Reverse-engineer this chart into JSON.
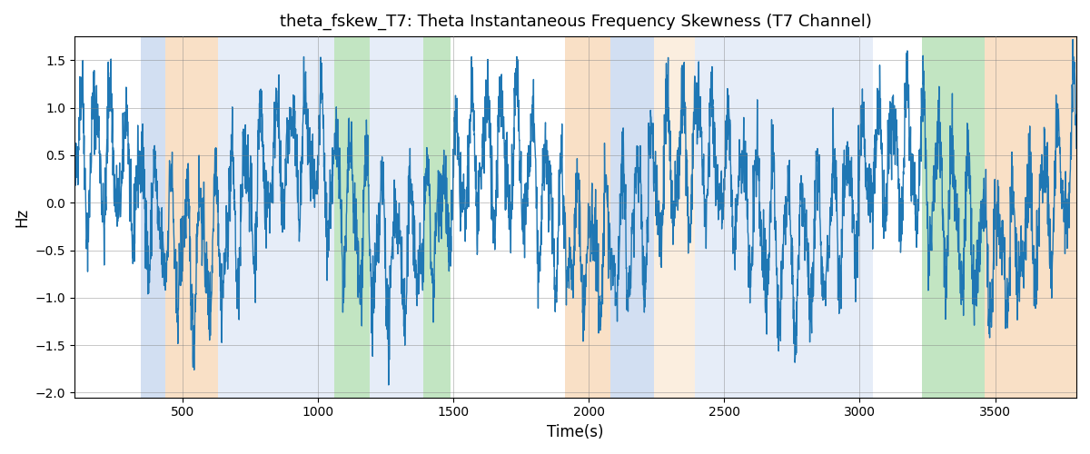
{
  "title": "theta_fskew_T7: Theta Instantaneous Frequency Skewness (T7 Channel)",
  "xlabel": "Time(s)",
  "ylabel": "Hz",
  "xlim": [
    100,
    3800
  ],
  "ylim": [
    -2.05,
    1.75
  ],
  "yticks": [
    -2.0,
    -1.5,
    -1.0,
    -0.5,
    0.0,
    0.5,
    1.0,
    1.5
  ],
  "xticks": [
    500,
    1000,
    1500,
    2000,
    2500,
    3000,
    3500
  ],
  "line_color": "#1f77b4",
  "line_width": 1.0,
  "bg_color": "white",
  "figsize": [
    12,
    5
  ],
  "dpi": 100,
  "colored_bands": [
    {
      "xmin": 345,
      "xmax": 435,
      "color": "#aec6e8",
      "alpha": 0.55
    },
    {
      "xmin": 435,
      "xmax": 630,
      "color": "#f5c898",
      "alpha": 0.55
    },
    {
      "xmin": 630,
      "xmax": 780,
      "color": "#aec6e8",
      "alpha": 0.3
    },
    {
      "xmin": 780,
      "xmax": 900,
      "color": "#aec6e8",
      "alpha": 0.3
    },
    {
      "xmin": 900,
      "xmax": 1060,
      "color": "#aec6e8",
      "alpha": 0.3
    },
    {
      "xmin": 1060,
      "xmax": 1190,
      "color": "#90d090",
      "alpha": 0.55
    },
    {
      "xmin": 1190,
      "xmax": 1390,
      "color": "#aec6e8",
      "alpha": 0.3
    },
    {
      "xmin": 1390,
      "xmax": 1490,
      "color": "#90d090",
      "alpha": 0.55
    },
    {
      "xmin": 1910,
      "xmax": 2080,
      "color": "#f5c898",
      "alpha": 0.55
    },
    {
      "xmin": 2080,
      "xmax": 2240,
      "color": "#aec6e8",
      "alpha": 0.55
    },
    {
      "xmin": 2240,
      "xmax": 2390,
      "color": "#f5c898",
      "alpha": 0.3
    },
    {
      "xmin": 2390,
      "xmax": 2540,
      "color": "#aec6e8",
      "alpha": 0.3
    },
    {
      "xmin": 2540,
      "xmax": 2680,
      "color": "#aec6e8",
      "alpha": 0.3
    },
    {
      "xmin": 2680,
      "xmax": 2860,
      "color": "#aec6e8",
      "alpha": 0.3
    },
    {
      "xmin": 2860,
      "xmax": 3050,
      "color": "#aec6e8",
      "alpha": 0.3
    },
    {
      "xmin": 3230,
      "xmax": 3460,
      "color": "#90d090",
      "alpha": 0.55
    },
    {
      "xmin": 3460,
      "xmax": 3800,
      "color": "#f5c898",
      "alpha": 0.55
    }
  ],
  "slow_freq": 0.00135,
  "fast_freq": 0.018,
  "noise_std": 0.28,
  "envelope_scale": 0.72,
  "seed": 42
}
